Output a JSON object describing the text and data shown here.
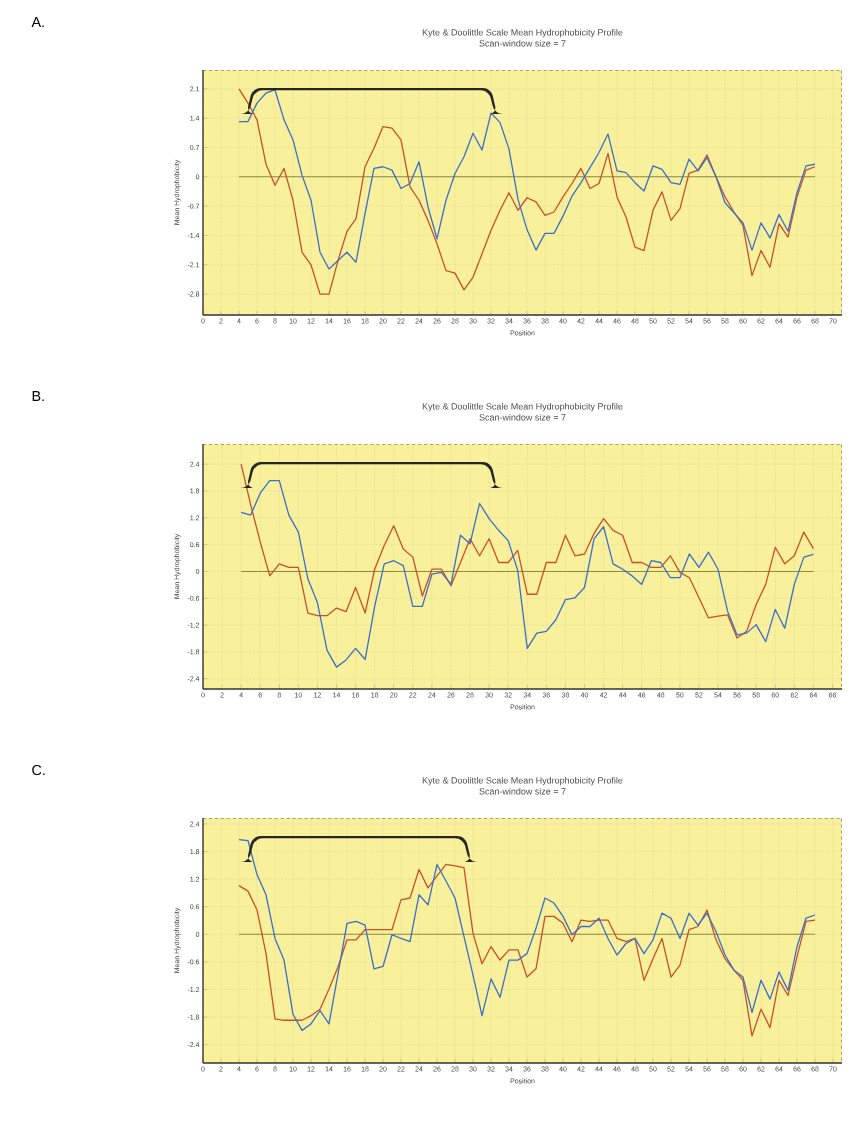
{
  "chart_data": [
    {
      "type": "line",
      "title": "Kyte & Doolittle Scale Mean Hydrophobicity Profile",
      "subtitle": "Scan-window size = 7",
      "xlabel": "Position",
      "ylabel": "Mean Hydrophobicity",
      "annotations": [
        "A."
      ],
      "grid": true,
      "xlim": [
        0,
        71
      ],
      "ylim": [
        -3.3,
        2.55
      ],
      "xticks": [
        0,
        2,
        4,
        6,
        8,
        10,
        12,
        14,
        16,
        18,
        20,
        22,
        24,
        26,
        28,
        30,
        32,
        34,
        36,
        38,
        40,
        42,
        44,
        46,
        48,
        50,
        52,
        54,
        56,
        58,
        60,
        62,
        64,
        66,
        68,
        70
      ],
      "yticks": [
        -2.8,
        -2.1,
        -1.4,
        -0.7,
        0,
        0.7,
        1.4,
        2.1
      ],
      "ref_lines": [
        {
          "axis": "y",
          "value": 0,
          "color": "#8c8c3c"
        }
      ],
      "x": [
        4,
        5,
        6,
        7,
        8,
        9,
        10,
        11,
        12,
        13,
        14,
        15,
        16,
        17,
        18,
        19,
        20,
        21,
        22,
        23,
        24,
        25,
        26,
        27,
        28,
        29,
        30,
        31,
        32,
        33,
        34,
        35,
        36,
        37,
        38,
        39,
        40,
        41,
        42,
        43,
        44,
        45,
        46,
        47,
        48,
        49,
        50,
        51,
        52,
        53,
        54,
        55,
        56,
        57,
        58,
        59,
        60,
        61,
        62,
        63,
        64,
        65,
        66,
        67,
        68
      ],
      "series": [
        {
          "color": "#c8502a",
          "values": [
            2.1,
            1.76,
            1.36,
            0.3,
            -0.2,
            0.2,
            -0.56,
            -1.8,
            -2.1,
            -2.8,
            -2.8,
            -2.0,
            -1.3,
            -1.0,
            0.24,
            0.68,
            1.2,
            1.16,
            0.88,
            -0.24,
            -0.56,
            -1.04,
            -1.6,
            -2.24,
            -2.3,
            -2.7,
            -2.4,
            -1.84,
            -1.28,
            -0.8,
            -0.38,
            -0.8,
            -0.5,
            -0.6,
            -0.92,
            -0.84,
            -0.48,
            -0.16,
            0.2,
            -0.28,
            -0.16,
            0.56,
            -0.48,
            -0.96,
            -1.68,
            -1.76,
            -0.8,
            -0.36,
            -1.04,
            -0.76,
            0.08,
            0.16,
            0.52,
            0,
            -0.48,
            -0.84,
            -1.16,
            -2.36,
            -1.76,
            -2.16,
            -1.12,
            -1.44,
            -0.48,
            0.16,
            0.24
          ]
        },
        {
          "color": "#3a6fc8",
          "values": [
            1.32,
            1.32,
            1.76,
            2.0,
            2.08,
            1.36,
            0.88,
            0.04,
            -0.56,
            -1.8,
            -2.2,
            -2.0,
            -1.8,
            -2.04,
            -0.88,
            0.2,
            0.24,
            0.16,
            -0.28,
            -0.16,
            0.36,
            -0.72,
            -1.48,
            -0.56,
            0.08,
            0.48,
            1.04,
            0.64,
            1.52,
            1.3,
            0.66,
            -0.54,
            -1.26,
            -1.75,
            -1.35,
            -1.35,
            -0.94,
            -0.46,
            -0.14,
            0.22,
            0.58,
            1.02,
            0.14,
            0.1,
            -0.14,
            -0.34,
            0.26,
            0.18,
            -0.14,
            -0.18,
            0.42,
            0.14,
            0.46,
            0,
            -0.62,
            -0.86,
            -1.1,
            -1.75,
            -1.1,
            -1.46,
            -0.9,
            -1.3,
            -0.38,
            0.26,
            0.3
          ]
        }
      ]
    },
    {
      "type": "line",
      "title": "Kyte & Doolittle Scale Mean Hydrophobicity Profile",
      "subtitle": "Scan-window size = 7",
      "xlabel": "Position",
      "ylabel": "Mean Hydrophobicity",
      "annotations": [
        "B."
      ],
      "grid": true,
      "xlim": [
        0,
        67
      ],
      "ylim": [
        -2.63,
        2.85
      ],
      "xticks": [
        0,
        2,
        4,
        6,
        8,
        10,
        12,
        14,
        16,
        18,
        20,
        22,
        24,
        26,
        28,
        30,
        32,
        34,
        36,
        38,
        40,
        42,
        44,
        46,
        48,
        50,
        52,
        54,
        56,
        58,
        60,
        62,
        64,
        66
      ],
      "yticks": [
        -2.4,
        -1.8,
        -1.2,
        -0.6,
        0,
        0.6,
        1.2,
        1.8,
        2.4
      ],
      "ref_lines": [
        {
          "axis": "y",
          "value": 0,
          "color": "#8c8c3c"
        }
      ],
      "x": [
        4,
        5,
        6,
        7,
        8,
        9,
        10,
        11,
        12,
        13,
        14,
        15,
        16,
        17,
        18,
        19,
        20,
        21,
        22,
        23,
        24,
        25,
        26,
        27,
        28,
        29,
        30,
        31,
        32,
        33,
        34,
        35,
        36,
        37,
        38,
        39,
        40,
        41,
        42,
        43,
        44,
        45,
        46,
        47,
        48,
        49,
        50,
        51,
        52,
        53,
        54,
        55,
        56,
        57,
        58,
        59,
        60,
        61,
        62,
        63,
        64
      ],
      "series": [
        {
          "color": "#c8502a",
          "values": [
            2.4,
            1.49,
            0.66,
            -0.1,
            0.17,
            0.09,
            0.09,
            -0.93,
            -0.99,
            -0.99,
            -0.82,
            -0.9,
            -0.36,
            -0.93,
            0.05,
            0.58,
            1.02,
            0.5,
            0.32,
            -0.55,
            0.05,
            0.05,
            -0.32,
            0.2,
            0.73,
            0.35,
            0.73,
            0.2,
            0.2,
            0.47,
            -0.51,
            -0.51,
            0.2,
            0.2,
            0.81,
            0.35,
            0.39,
            0.85,
            1.18,
            0.92,
            0.81,
            0.2,
            0.2,
            0.09,
            0.09,
            0.35,
            -0.02,
            -0.14,
            -0.59,
            -1.04,
            -1.0,
            -0.97,
            -1.49,
            -1.34,
            -0.74,
            -0.29,
            0.54,
            0.17,
            0.35,
            0.88,
            0.51
          ]
        },
        {
          "color": "#3a6fc8",
          "values": [
            1.32,
            1.26,
            1.75,
            2.03,
            2.03,
            1.26,
            0.88,
            -0.17,
            -0.7,
            -1.76,
            -2.14,
            -1.98,
            -1.72,
            -1.97,
            -0.78,
            0.17,
            0.24,
            0.13,
            -0.78,
            -0.78,
            -0.06,
            -0.02,
            -0.29,
            0.81,
            0.62,
            1.52,
            1.18,
            0.92,
            0.69,
            0.02,
            -1.72,
            -1.38,
            -1.34,
            -1.08,
            -0.63,
            -0.59,
            -0.36,
            0.73,
            1.0,
            0.17,
            0.05,
            -0.1,
            -0.29,
            0.24,
            0.2,
            -0.14,
            -0.14,
            0.39,
            0.09,
            0.43,
            0.05,
            -0.89,
            -1.42,
            -1.38,
            -1.19,
            -1.57,
            -0.85,
            -1.27,
            -0.29,
            0.32,
            0.38
          ]
        }
      ]
    },
    {
      "type": "line",
      "title": "Kyte & Doolittle Scale Mean Hydrophobicity Profile",
      "subtitle": "Scan-window size = 7",
      "xlabel": "Position",
      "ylabel": "Mean Hydrophobicity",
      "annotations": [
        "C."
      ],
      "grid": true,
      "xlim": [
        0,
        71
      ],
      "ylim": [
        -2.8,
        2.53
      ],
      "xticks": [
        0,
        2,
        4,
        6,
        8,
        10,
        12,
        14,
        16,
        18,
        20,
        22,
        24,
        26,
        28,
        30,
        32,
        34,
        36,
        38,
        40,
        42,
        44,
        46,
        48,
        50,
        52,
        54,
        56,
        58,
        60,
        62,
        64,
        66,
        68,
        70
      ],
      "yticks": [
        -2.4,
        -1.8,
        -1.2,
        -0.6,
        0,
        0.6,
        1.2,
        1.8,
        2.4
      ],
      "ref_lines": [
        {
          "axis": "y",
          "value": 0,
          "color": "#8c8c3c"
        }
      ],
      "x": [
        4,
        5,
        6,
        7,
        8,
        9,
        10,
        11,
        12,
        13,
        14,
        15,
        16,
        17,
        18,
        19,
        20,
        21,
        22,
        23,
        24,
        25,
        26,
        27,
        28,
        29,
        30,
        31,
        32,
        33,
        34,
        35,
        36,
        37,
        38,
        39,
        40,
        41,
        42,
        43,
        44,
        45,
        46,
        47,
        48,
        49,
        50,
        51,
        52,
        53,
        54,
        55,
        56,
        57,
        58,
        59,
        60,
        61,
        62,
        63,
        64,
        65,
        66,
        67,
        68
      ],
      "series": [
        {
          "color": "#c8502a",
          "values": [
            1.06,
            0.94,
            0.53,
            -0.42,
            -1.84,
            -1.87,
            -1.87,
            -1.87,
            -1.77,
            -1.63,
            -1.19,
            -0.71,
            -0.12,
            -0.12,
            0.1,
            0.1,
            0.1,
            0.1,
            0.75,
            0.79,
            1.41,
            1.01,
            1.27,
            1.52,
            1.49,
            1.45,
            0.02,
            -0.64,
            -0.27,
            -0.56,
            -0.34,
            -0.34,
            -0.93,
            -0.75,
            0.39,
            0.39,
            0.24,
            -0.16,
            0.31,
            0.28,
            0.31,
            0.31,
            -0.09,
            -0.16,
            -0.09,
            -1.0,
            -0.53,
            -0.09,
            -0.93,
            -0.67,
            0.1,
            0.17,
            0.53,
            -0.12,
            -0.53,
            -0.78,
            -1.0,
            -2.21,
            -1.63,
            -2.03,
            -1.0,
            -1.33,
            -0.49,
            0.28,
            0.31
          ]
        },
        {
          "color": "#3a6fc8",
          "values": [
            2.06,
            2.04,
            1.3,
            0.86,
            -0.09,
            -0.56,
            -1.74,
            -2.09,
            -1.95,
            -1.66,
            -1.95,
            -0.86,
            0.24,
            0.28,
            0.2,
            -0.75,
            -0.7,
            -0.01,
            -0.09,
            -0.16,
            0.86,
            0.64,
            1.52,
            1.16,
            0.79,
            -0.05,
            -0.89,
            -1.77,
            -0.97,
            -1.37,
            -0.56,
            -0.56,
            -0.42,
            0.13,
            0.79,
            0.68,
            0.39,
            -0.01,
            0.17,
            0.17,
            0.35,
            -0.09,
            -0.45,
            -0.2,
            -0.09,
            -0.42,
            -0.12,
            0.46,
            0.35,
            -0.09,
            0.46,
            0.2,
            0.46,
            0.06,
            -0.45,
            -0.78,
            -0.93,
            -1.7,
            -1.0,
            -1.41,
            -0.82,
            -1.22,
            -0.27,
            0.35,
            0.42
          ]
        }
      ]
    }
  ]
}
